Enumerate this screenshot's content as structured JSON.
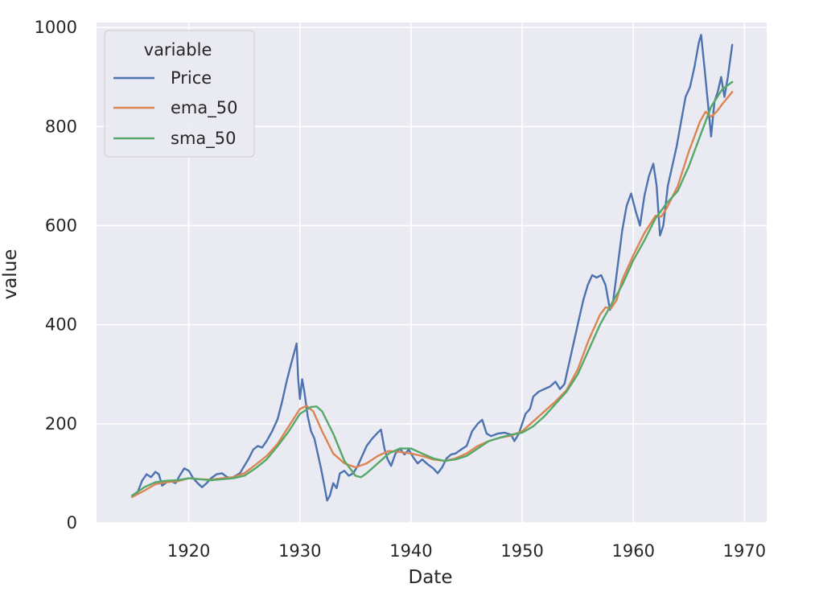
{
  "chart_data": {
    "type": "line",
    "title": "",
    "xlabel": "Date",
    "ylabel": "value",
    "xlim": [
      1911.7,
      1972.0
    ],
    "ylim": [
      0,
      1010
    ],
    "xticks": [
      1920,
      1930,
      1940,
      1950,
      1960,
      1970
    ],
    "xtick_labels": [
      "1920",
      "1930",
      "1940",
      "1950",
      "1960",
      "1970"
    ],
    "yticks": [
      0,
      200,
      400,
      600,
      800,
      1000
    ],
    "ytick_labels": [
      "0",
      "200",
      "400",
      "600",
      "800",
      "1000"
    ],
    "grid": true,
    "legend": {
      "title": "variable",
      "placement": "top-left",
      "entries": [
        "Price",
        "ema_50",
        "sma_50"
      ]
    },
    "colors": {
      "background": "#eaeaf2",
      "grid": "#ffffff",
      "Price": "#4c72b0",
      "ema_50": "#dd8452",
      "sma_50": "#55a868"
    },
    "series": [
      {
        "name": "Price",
        "color": "#4c72b0",
        "points": [
          [
            1914.9,
            55
          ],
          [
            1915.4,
            62
          ],
          [
            1915.8,
            85
          ],
          [
            1916.2,
            98
          ],
          [
            1916.6,
            92
          ],
          [
            1917.0,
            103
          ],
          [
            1917.3,
            98
          ],
          [
            1917.6,
            75
          ],
          [
            1918.0,
            82
          ],
          [
            1918.4,
            84
          ],
          [
            1918.8,
            80
          ],
          [
            1919.2,
            96
          ],
          [
            1919.6,
            110
          ],
          [
            1920.0,
            105
          ],
          [
            1920.4,
            90
          ],
          [
            1920.8,
            80
          ],
          [
            1921.2,
            72
          ],
          [
            1921.6,
            80
          ],
          [
            1922.0,
            90
          ],
          [
            1922.5,
            98
          ],
          [
            1923.0,
            100
          ],
          [
            1923.4,
            93
          ],
          [
            1923.8,
            90
          ],
          [
            1924.2,
            95
          ],
          [
            1924.6,
            100
          ],
          [
            1925.0,
            115
          ],
          [
            1925.4,
            130
          ],
          [
            1925.8,
            148
          ],
          [
            1926.2,
            155
          ],
          [
            1926.6,
            152
          ],
          [
            1927.0,
            165
          ],
          [
            1927.5,
            185
          ],
          [
            1928.0,
            210
          ],
          [
            1928.4,
            245
          ],
          [
            1928.8,
            285
          ],
          [
            1929.2,
            320
          ],
          [
            1929.5,
            345
          ],
          [
            1929.7,
            362
          ],
          [
            1929.85,
            290
          ],
          [
            1930.0,
            250
          ],
          [
            1930.2,
            290
          ],
          [
            1930.4,
            265
          ],
          [
            1930.7,
            215
          ],
          [
            1931.0,
            185
          ],
          [
            1931.3,
            170
          ],
          [
            1931.6,
            140
          ],
          [
            1931.9,
            110
          ],
          [
            1932.2,
            75
          ],
          [
            1932.45,
            45
          ],
          [
            1932.7,
            55
          ],
          [
            1933.0,
            80
          ],
          [
            1933.3,
            70
          ],
          [
            1933.6,
            100
          ],
          [
            1934.0,
            105
          ],
          [
            1934.4,
            95
          ],
          [
            1934.8,
            100
          ],
          [
            1935.2,
            115
          ],
          [
            1935.6,
            135
          ],
          [
            1936.0,
            155
          ],
          [
            1936.5,
            170
          ],
          [
            1937.0,
            182
          ],
          [
            1937.3,
            188
          ],
          [
            1937.6,
            150
          ],
          [
            1937.9,
            128
          ],
          [
            1938.2,
            115
          ],
          [
            1938.6,
            140
          ],
          [
            1939.0,
            150
          ],
          [
            1939.4,
            138
          ],
          [
            1939.8,
            148
          ],
          [
            1940.2,
            132
          ],
          [
            1940.6,
            120
          ],
          [
            1941.0,
            128
          ],
          [
            1941.5,
            118
          ],
          [
            1942.0,
            110
          ],
          [
            1942.4,
            100
          ],
          [
            1942.8,
            112
          ],
          [
            1943.2,
            130
          ],
          [
            1943.6,
            138
          ],
          [
            1944.0,
            140
          ],
          [
            1944.5,
            148
          ],
          [
            1945.0,
            155
          ],
          [
            1945.5,
            185
          ],
          [
            1946.0,
            200
          ],
          [
            1946.4,
            208
          ],
          [
            1946.8,
            180
          ],
          [
            1947.2,
            175
          ],
          [
            1947.8,
            180
          ],
          [
            1948.4,
            182
          ],
          [
            1949.0,
            178
          ],
          [
            1949.3,
            165
          ],
          [
            1949.7,
            180
          ],
          [
            1950.0,
            200
          ],
          [
            1950.3,
            220
          ],
          [
            1950.7,
            230
          ],
          [
            1951.0,
            255
          ],
          [
            1951.5,
            265
          ],
          [
            1952.0,
            270
          ],
          [
            1952.5,
            275
          ],
          [
            1953.0,
            285
          ],
          [
            1953.4,
            270
          ],
          [
            1953.8,
            280
          ],
          [
            1954.2,
            320
          ],
          [
            1954.7,
            370
          ],
          [
            1955.1,
            410
          ],
          [
            1955.5,
            450
          ],
          [
            1955.9,
            480
          ],
          [
            1956.3,
            500
          ],
          [
            1956.7,
            495
          ],
          [
            1957.1,
            500
          ],
          [
            1957.5,
            480
          ],
          [
            1957.9,
            430
          ],
          [
            1958.2,
            450
          ],
          [
            1958.6,
            520
          ],
          [
            1959.0,
            590
          ],
          [
            1959.4,
            640
          ],
          [
            1959.8,
            665
          ],
          [
            1960.2,
            630
          ],
          [
            1960.6,
            600
          ],
          [
            1961.0,
            660
          ],
          [
            1961.4,
            700
          ],
          [
            1961.8,
            725
          ],
          [
            1962.1,
            680
          ],
          [
            1962.4,
            580
          ],
          [
            1962.7,
            600
          ],
          [
            1963.1,
            680
          ],
          [
            1963.5,
            720
          ],
          [
            1963.9,
            760
          ],
          [
            1964.3,
            810
          ],
          [
            1964.7,
            860
          ],
          [
            1965.1,
            880
          ],
          [
            1965.5,
            920
          ],
          [
            1965.9,
            970
          ],
          [
            1966.1,
            985
          ],
          [
            1966.4,
            920
          ],
          [
            1966.7,
            850
          ],
          [
            1967.0,
            780
          ],
          [
            1967.3,
            850
          ],
          [
            1967.6,
            870
          ],
          [
            1967.9,
            900
          ],
          [
            1968.2,
            860
          ],
          [
            1968.5,
            900
          ],
          [
            1968.9,
            965
          ]
        ]
      },
      {
        "name": "ema_50",
        "color": "#dd8452",
        "points": [
          [
            1914.9,
            52
          ],
          [
            1916.0,
            65
          ],
          [
            1917.0,
            78
          ],
          [
            1918.0,
            82
          ],
          [
            1919.0,
            84
          ],
          [
            1920.0,
            90
          ],
          [
            1921.0,
            88
          ],
          [
            1922.0,
            87
          ],
          [
            1923.0,
            90
          ],
          [
            1924.0,
            92
          ],
          [
            1925.0,
            100
          ],
          [
            1926.0,
            117
          ],
          [
            1927.0,
            135
          ],
          [
            1928.0,
            160
          ],
          [
            1929.0,
            195
          ],
          [
            1930.0,
            230
          ],
          [
            1930.6,
            236
          ],
          [
            1931.2,
            225
          ],
          [
            1932.0,
            185
          ],
          [
            1933.0,
            140
          ],
          [
            1934.0,
            120
          ],
          [
            1935.0,
            112
          ],
          [
            1936.0,
            120
          ],
          [
            1937.0,
            135
          ],
          [
            1938.0,
            145
          ],
          [
            1939.0,
            143
          ],
          [
            1940.0,
            140
          ],
          [
            1941.0,
            135
          ],
          [
            1942.0,
            128
          ],
          [
            1943.0,
            125
          ],
          [
            1944.0,
            130
          ],
          [
            1945.0,
            140
          ],
          [
            1946.0,
            155
          ],
          [
            1947.0,
            165
          ],
          [
            1948.0,
            172
          ],
          [
            1949.0,
            176
          ],
          [
            1950.0,
            185
          ],
          [
            1951.0,
            205
          ],
          [
            1952.0,
            225
          ],
          [
            1953.0,
            245
          ],
          [
            1954.0,
            268
          ],
          [
            1955.0,
            310
          ],
          [
            1956.0,
            370
          ],
          [
            1957.0,
            420
          ],
          [
            1957.5,
            435
          ],
          [
            1958.0,
            433
          ],
          [
            1958.5,
            450
          ],
          [
            1959.0,
            490
          ],
          [
            1960.0,
            540
          ],
          [
            1961.0,
            585
          ],
          [
            1962.0,
            620
          ],
          [
            1962.5,
            618
          ],
          [
            1963.0,
            635
          ],
          [
            1964.0,
            680
          ],
          [
            1965.0,
            750
          ],
          [
            1966.0,
            810
          ],
          [
            1966.5,
            830
          ],
          [
            1967.0,
            820
          ],
          [
            1967.5,
            830
          ],
          [
            1968.0,
            845
          ],
          [
            1968.9,
            870
          ]
        ]
      },
      {
        "name": "sma_50",
        "color": "#55a868",
        "points": [
          [
            1914.9,
            55
          ],
          [
            1916.0,
            72
          ],
          [
            1917.0,
            82
          ],
          [
            1918.0,
            85
          ],
          [
            1919.0,
            86
          ],
          [
            1920.0,
            90
          ],
          [
            1921.0,
            88
          ],
          [
            1922.0,
            86
          ],
          [
            1923.0,
            88
          ],
          [
            1924.0,
            90
          ],
          [
            1925.0,
            95
          ],
          [
            1926.0,
            110
          ],
          [
            1927.0,
            128
          ],
          [
            1928.0,
            155
          ],
          [
            1929.0,
            185
          ],
          [
            1930.0,
            220
          ],
          [
            1931.0,
            234
          ],
          [
            1931.5,
            235
          ],
          [
            1932.0,
            225
          ],
          [
            1933.0,
            180
          ],
          [
            1934.0,
            125
          ],
          [
            1935.0,
            95
          ],
          [
            1935.5,
            92
          ],
          [
            1936.0,
            100
          ],
          [
            1937.0,
            120
          ],
          [
            1938.0,
            140
          ],
          [
            1939.0,
            150
          ],
          [
            1940.0,
            150
          ],
          [
            1941.0,
            140
          ],
          [
            1942.0,
            130
          ],
          [
            1943.0,
            125
          ],
          [
            1944.0,
            128
          ],
          [
            1945.0,
            135
          ],
          [
            1946.0,
            150
          ],
          [
            1947.0,
            165
          ],
          [
            1948.0,
            172
          ],
          [
            1949.0,
            178
          ],
          [
            1950.0,
            182
          ],
          [
            1951.0,
            195
          ],
          [
            1952.0,
            215
          ],
          [
            1953.0,
            240
          ],
          [
            1954.0,
            265
          ],
          [
            1955.0,
            300
          ],
          [
            1956.0,
            350
          ],
          [
            1957.0,
            400
          ],
          [
            1958.0,
            440
          ],
          [
            1959.0,
            480
          ],
          [
            1960.0,
            530
          ],
          [
            1961.0,
            570
          ],
          [
            1962.0,
            615
          ],
          [
            1963.0,
            645
          ],
          [
            1964.0,
            670
          ],
          [
            1965.0,
            720
          ],
          [
            1966.0,
            780
          ],
          [
            1967.0,
            840
          ],
          [
            1968.0,
            875
          ],
          [
            1968.9,
            890
          ]
        ]
      }
    ]
  }
}
